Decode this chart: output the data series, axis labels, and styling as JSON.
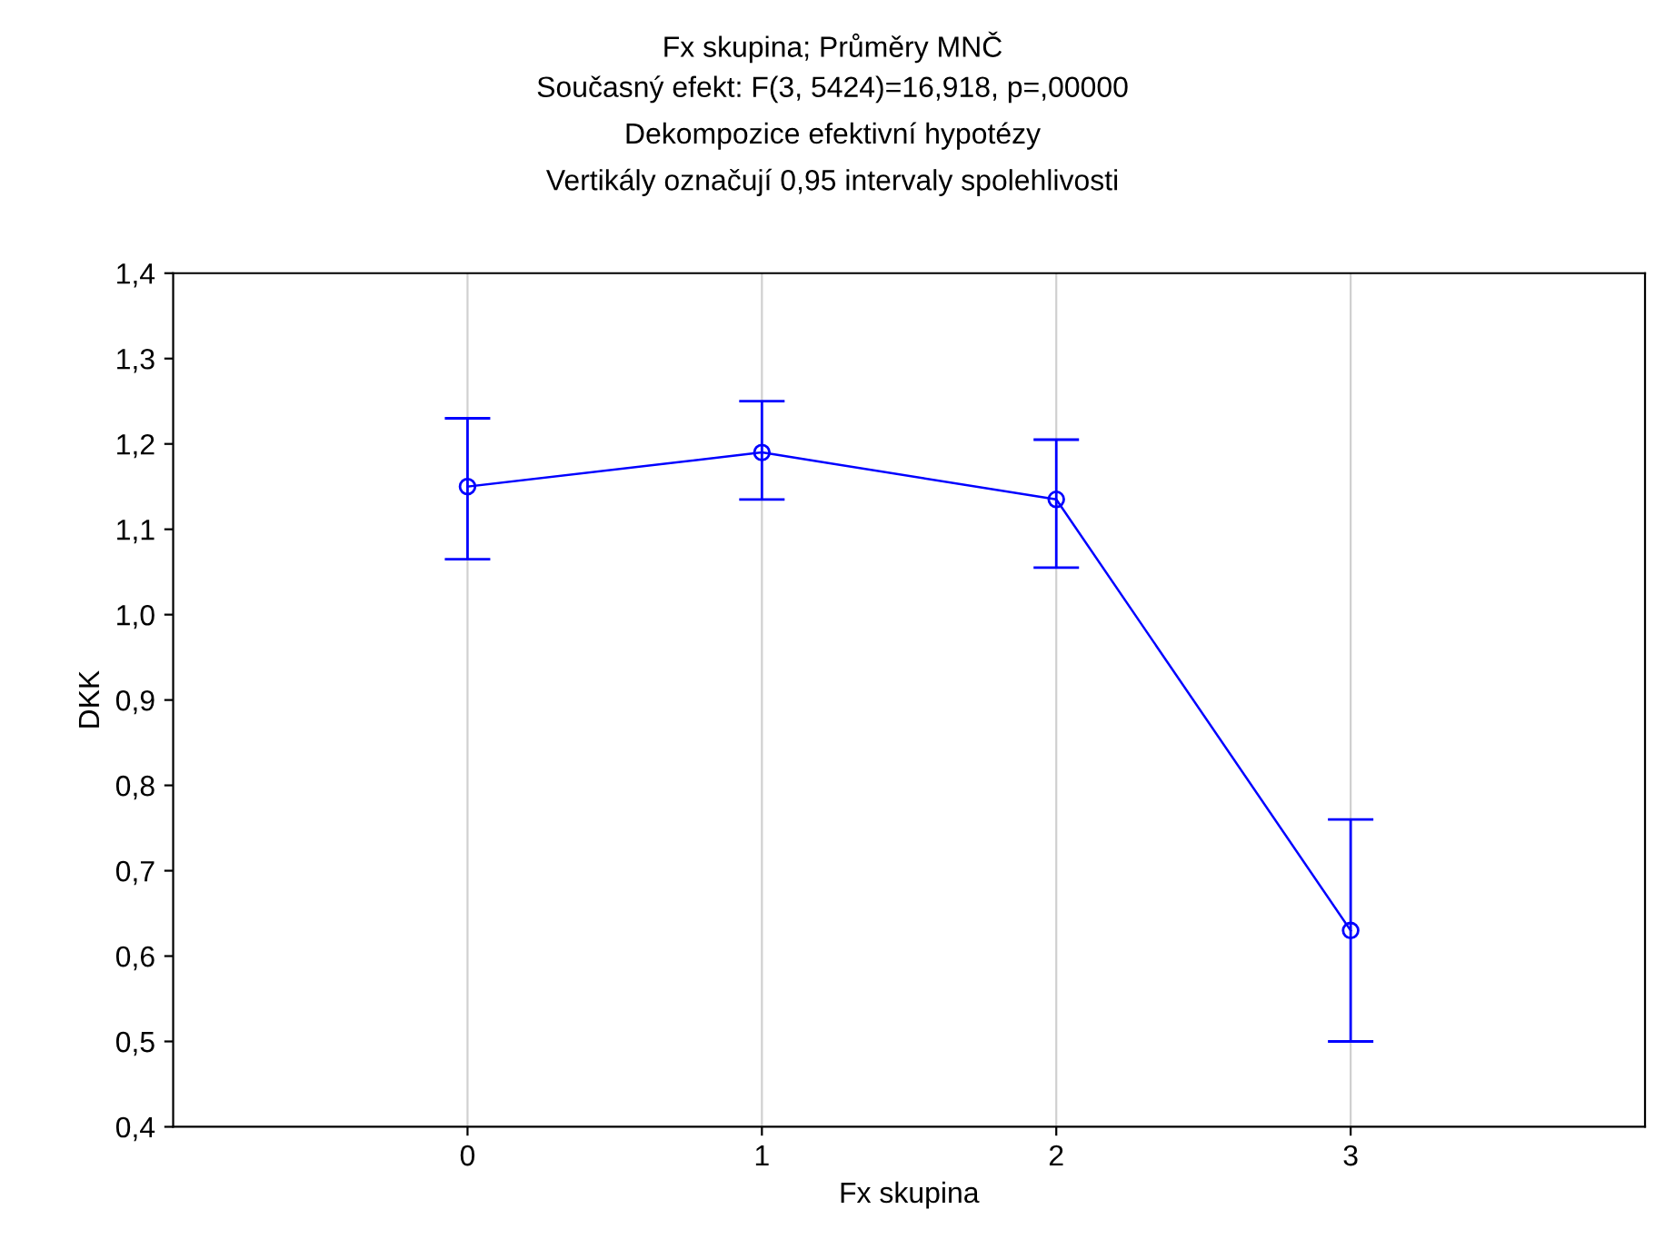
{
  "chart_data": {
    "type": "line",
    "title": "Fx skupina; Průměry MNČ",
    "subtitle": "Současný efekt: F(3, 5424)=16,918, p=,00000\nDekompozice efektivní hypotézy\nVertikály označují 0,95 intervaly spolehlivosti",
    "xlabel": "Fx skupina",
    "ylabel": "DKK",
    "x": [
      0,
      1,
      2,
      3
    ],
    "series": [
      {
        "color": "#0000ff",
        "values": [
          1.15,
          1.19,
          1.135,
          0.63
        ],
        "errors": [
          [
            1.065,
            1.23
          ],
          [
            1.135,
            1.25
          ],
          [
            1.055,
            1.205
          ],
          [
            0.5,
            0.76
          ]
        ]
      }
    ],
    "xlim": [
      -1,
      4
    ],
    "xticks": [
      0,
      1,
      2,
      3
    ],
    "ylim": [
      0.4,
      1.4
    ],
    "yticks": [
      {
        "value": 0.4,
        "label": "0,4"
      },
      {
        "value": 0.5,
        "label": "0,5"
      },
      {
        "value": 0.6,
        "label": "0,6"
      },
      {
        "value": 0.7,
        "label": "0,7"
      },
      {
        "value": 0.8,
        "label": "0,8"
      },
      {
        "value": 0.9,
        "label": "0,9"
      },
      {
        "value": 1.0,
        "label": "1,0"
      },
      {
        "value": 1.1,
        "label": "1,1"
      },
      {
        "value": 1.2,
        "label": "1,2"
      },
      {
        "value": 1.3,
        "label": "1,3"
      },
      {
        "value": 1.4,
        "label": "1,4"
      }
    ],
    "grid": "x",
    "marker": "circle",
    "line_style": "solid"
  }
}
